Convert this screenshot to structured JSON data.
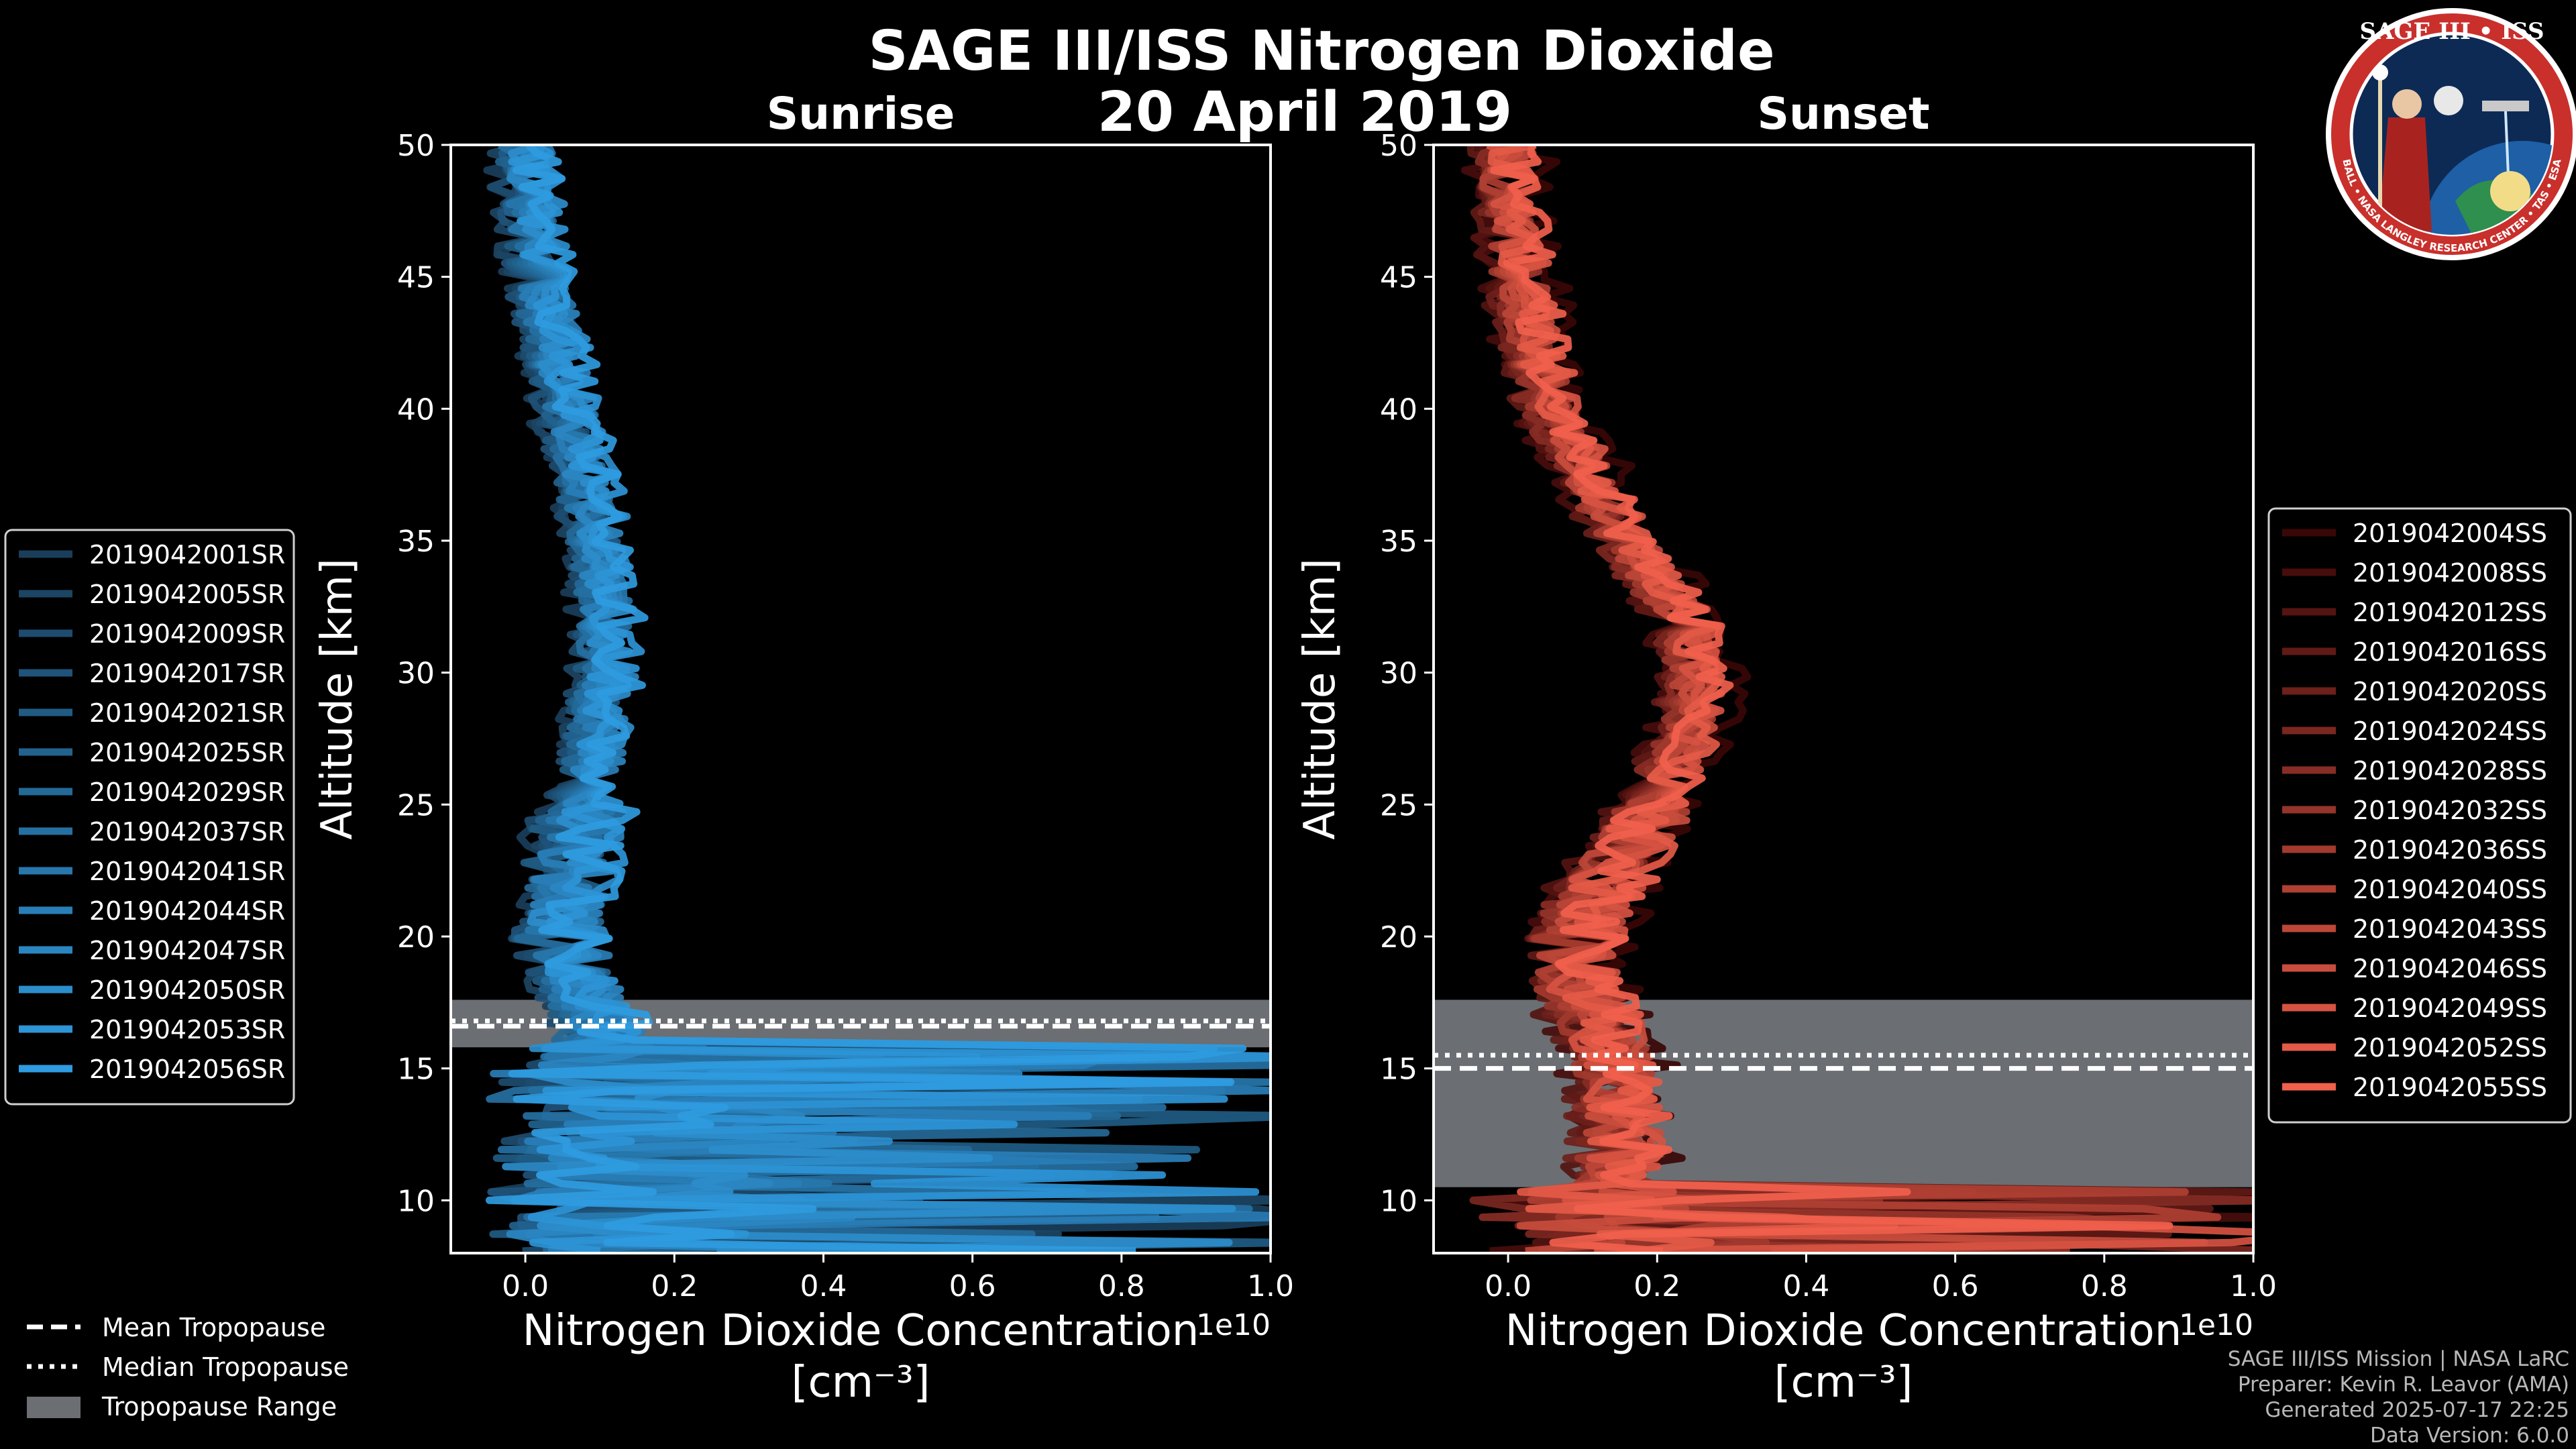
{
  "title_line1": "SAGE III/ISS Nitrogen Dioxide",
  "title_line2": "20 April 2019",
  "logo": {
    "title": "SAGE III • ISS",
    "ring_text": "BALL • NASA LANGLEY RESEARCH CENTER • TAS • ESA"
  },
  "credits": [
    "SAGE III/ISS Mission | NASA LaRC",
    "Preparer: Kevin R. Leavor (AMA)",
    "Generated 2025-07-17 22:25",
    "Data Version: 6.0.0"
  ],
  "bottom_legend": {
    "mean": "Mean Tropopause",
    "median": "Median Tropopause",
    "range": "Tropopause Range"
  },
  "colors": {
    "sunrise_light": "#2f9be0",
    "sunrise_dark": "#1a3e5a",
    "sunset_light": "#f0604c",
    "sunset_dark": "#3a0707",
    "tropopause_range": "#6b6e72"
  },
  "chart_data": [
    {
      "type": "line",
      "panel": "sunrise",
      "title": "Sunrise",
      "xlabel": "Nitrogen Dioxide Concentration",
      "xunit": "[cm⁻³]",
      "x_scale_label": "1e10",
      "ylabel": "Altitude [km]",
      "xlim": [
        -0.1,
        1.0
      ],
      "ylim": [
        8,
        50
      ],
      "xticks": [
        "0.0",
        "0.2",
        "0.4",
        "0.6",
        "0.8",
        "1.0"
      ],
      "yticks": [
        "10",
        "15",
        "20",
        "25",
        "30",
        "35",
        "40",
        "45",
        "50"
      ],
      "tropopause": {
        "mean": 16.6,
        "median": 16.8,
        "range": [
          15.8,
          17.6
        ]
      },
      "profile_shape": {
        "altitude": [
          50,
          45,
          40,
          35,
          32,
          30,
          28,
          25,
          22,
          20,
          18,
          17
        ],
        "concentration": [
          0.0,
          0.02,
          0.06,
          0.1,
          0.11,
          0.11,
          0.1,
          0.08,
          0.06,
          0.05,
          0.07,
          0.1
        ]
      },
      "series": [
        {
          "name": "2019042001SR"
        },
        {
          "name": "2019042005SR"
        },
        {
          "name": "2019042009SR"
        },
        {
          "name": "2019042017SR"
        },
        {
          "name": "2019042021SR"
        },
        {
          "name": "2019042025SR"
        },
        {
          "name": "2019042029SR"
        },
        {
          "name": "2019042037SR"
        },
        {
          "name": "2019042041SR"
        },
        {
          "name": "2019042044SR"
        },
        {
          "name": "2019042047SR"
        },
        {
          "name": "2019042050SR"
        },
        {
          "name": "2019042053SR"
        },
        {
          "name": "2019042056SR"
        }
      ]
    },
    {
      "type": "line",
      "panel": "sunset",
      "title": "Sunset",
      "xlabel": "Nitrogen Dioxide Concentration",
      "xunit": "[cm⁻³]",
      "x_scale_label": "1e10",
      "ylabel": "Altitude [km]",
      "xlim": [
        -0.1,
        1.0
      ],
      "ylim": [
        8,
        50
      ],
      "xticks": [
        "0.0",
        "0.2",
        "0.4",
        "0.6",
        "0.8",
        "1.0"
      ],
      "yticks": [
        "10",
        "15",
        "20",
        "25",
        "30",
        "35",
        "40",
        "45",
        "50"
      ],
      "tropopause": {
        "mean": 15.0,
        "median": 15.5,
        "range": [
          10.5,
          17.6
        ]
      },
      "profile_shape": {
        "altitude": [
          50,
          45,
          40,
          35,
          32,
          30,
          28,
          25,
          22,
          20,
          18,
          15
        ],
        "concentration": [
          0.0,
          0.02,
          0.06,
          0.16,
          0.24,
          0.26,
          0.25,
          0.2,
          0.13,
          0.1,
          0.1,
          0.15
        ]
      },
      "series": [
        {
          "name": "2019042004SS"
        },
        {
          "name": "2019042008SS"
        },
        {
          "name": "2019042012SS"
        },
        {
          "name": "2019042016SS"
        },
        {
          "name": "2019042020SS"
        },
        {
          "name": "2019042024SS"
        },
        {
          "name": "2019042028SS"
        },
        {
          "name": "2019042032SS"
        },
        {
          "name": "2019042036SS"
        },
        {
          "name": "2019042040SS"
        },
        {
          "name": "2019042043SS"
        },
        {
          "name": "2019042046SS"
        },
        {
          "name": "2019042049SS"
        },
        {
          "name": "2019042052SS"
        },
        {
          "name": "2019042055SS"
        }
      ]
    }
  ]
}
